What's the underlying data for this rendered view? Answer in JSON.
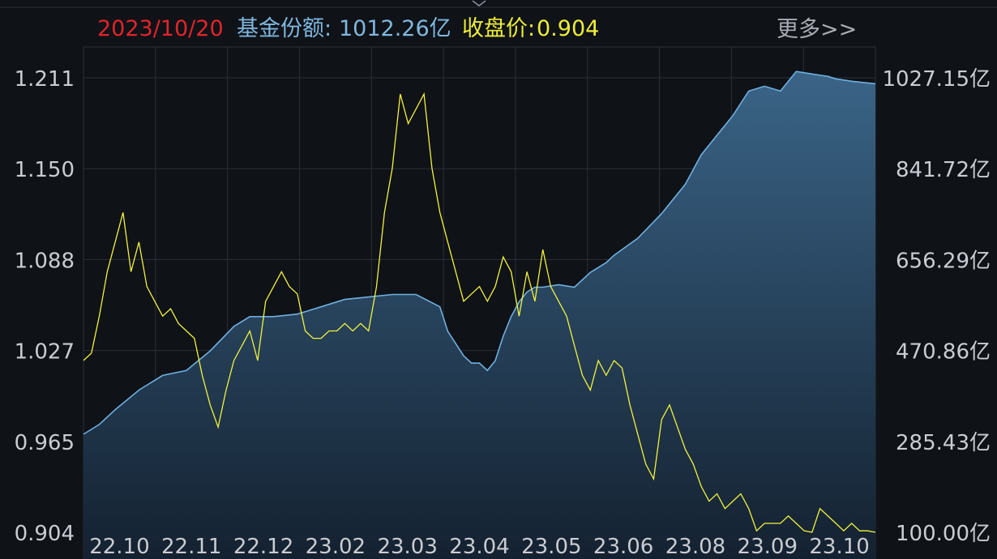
{
  "header": {
    "date": "2023/10/20",
    "shares_label": "基金份额:",
    "shares_value": "1012.26亿",
    "close_label": "收盘价:",
    "close_value": "0.904",
    "more_link": "更多>>"
  },
  "colors": {
    "background": "#0f1217",
    "grid": "#2b3038",
    "date": "#e0252a",
    "shares": "#7fb8df",
    "close": "#eded3a",
    "area_top": "#3a6487",
    "area_bottom": "#142130",
    "shares_line": "#6fb0e0",
    "price_line": "#f2f23c",
    "axis_text": "#c9ccd2"
  },
  "chart_data": {
    "type": "line",
    "title": "",
    "left_axis": {
      "ticks": [
        "1.211",
        "1.150",
        "1.088",
        "1.027",
        "0.965",
        "0.904"
      ],
      "ylim": [
        0.904,
        1.211
      ]
    },
    "right_axis": {
      "ticks": [
        "1027.15亿",
        "841.72亿",
        "656.29亿",
        "470.86亿",
        "285.43亿",
        "100.00亿"
      ],
      "ylim": [
        100.0,
        1027.15
      ]
    },
    "x_ticks": [
      "22.10",
      "22.11",
      "22.12",
      "23.02",
      "23.03",
      "23.04",
      "23.05",
      "23.06",
      "23.08",
      "23.09",
      "23.10"
    ],
    "series": [
      {
        "name": "基金份额",
        "axis": "right",
        "style": "area",
        "t": [
          0.0,
          0.02,
          0.04,
          0.07,
          0.1,
          0.13,
          0.16,
          0.19,
          0.21,
          0.24,
          0.27,
          0.3,
          0.33,
          0.36,
          0.39,
          0.42,
          0.45,
          0.46,
          0.48,
          0.49,
          0.5,
          0.51,
          0.52,
          0.53,
          0.54,
          0.55,
          0.56,
          0.57,
          0.58,
          0.6,
          0.62,
          0.64,
          0.66,
          0.67,
          0.7,
          0.73,
          0.76,
          0.78,
          0.8,
          0.82,
          0.84,
          0.86,
          0.88,
          0.9,
          0.92,
          0.94,
          0.95,
          0.97,
          1.0
        ],
        "values": [
          300,
          320,
          350,
          390,
          420,
          430,
          470,
          520,
          540,
          540,
          545,
          560,
          575,
          580,
          585,
          585,
          560,
          510,
          460,
          445,
          445,
          430,
          450,
          500,
          540,
          570,
          590,
          600,
          600,
          605,
          600,
          630,
          650,
          665,
          700,
          750,
          810,
          870,
          910,
          950,
          1000,
          1010,
          1000,
          1040,
          1035,
          1030,
          1025,
          1020,
          1015
        ]
      },
      {
        "name": "收盘价",
        "axis": "left",
        "style": "line",
        "t": [
          0.0,
          0.01,
          0.02,
          0.03,
          0.04,
          0.05,
          0.06,
          0.07,
          0.08,
          0.09,
          0.1,
          0.11,
          0.12,
          0.13,
          0.14,
          0.15,
          0.16,
          0.17,
          0.18,
          0.19,
          0.2,
          0.21,
          0.22,
          0.23,
          0.24,
          0.25,
          0.26,
          0.27,
          0.28,
          0.29,
          0.3,
          0.31,
          0.32,
          0.33,
          0.34,
          0.35,
          0.36,
          0.37,
          0.38,
          0.39,
          0.4,
          0.41,
          0.42,
          0.43,
          0.44,
          0.45,
          0.46,
          0.47,
          0.48,
          0.49,
          0.5,
          0.51,
          0.52,
          0.53,
          0.54,
          0.55,
          0.56,
          0.57,
          0.58,
          0.59,
          0.6,
          0.61,
          0.62,
          0.63,
          0.64,
          0.65,
          0.66,
          0.67,
          0.68,
          0.69,
          0.7,
          0.71,
          0.72,
          0.73,
          0.74,
          0.75,
          0.76,
          0.77,
          0.78,
          0.79,
          0.8,
          0.81,
          0.82,
          0.83,
          0.84,
          0.85,
          0.86,
          0.87,
          0.88,
          0.89,
          0.9,
          0.91,
          0.92,
          0.93,
          0.94,
          0.95,
          0.96,
          0.97,
          0.98,
          0.99,
          1.0
        ],
        "values": [
          1.02,
          1.025,
          1.05,
          1.08,
          1.1,
          1.12,
          1.08,
          1.1,
          1.07,
          1.06,
          1.05,
          1.055,
          1.045,
          1.04,
          1.035,
          1.01,
          0.99,
          0.975,
          1.0,
          1.02,
          1.03,
          1.04,
          1.02,
          1.06,
          1.07,
          1.08,
          1.07,
          1.065,
          1.04,
          1.035,
          1.035,
          1.04,
          1.04,
          1.045,
          1.04,
          1.045,
          1.04,
          1.07,
          1.12,
          1.15,
          1.2,
          1.18,
          1.19,
          1.2,
          1.15,
          1.12,
          1.1,
          1.08,
          1.06,
          1.065,
          1.07,
          1.06,
          1.07,
          1.09,
          1.08,
          1.05,
          1.08,
          1.06,
          1.095,
          1.07,
          1.06,
          1.05,
          1.03,
          1.01,
          1.0,
          1.02,
          1.01,
          1.02,
          1.015,
          0.99,
          0.97,
          0.95,
          0.94,
          0.98,
          0.99,
          0.975,
          0.96,
          0.95,
          0.935,
          0.925,
          0.93,
          0.92,
          0.925,
          0.93,
          0.92,
          0.905,
          0.91,
          0.91,
          0.91,
          0.915,
          0.91,
          0.905,
          0.904,
          0.92,
          0.915,
          0.91,
          0.905,
          0.91,
          0.905,
          0.905,
          0.904
        ]
      }
    ],
    "grid": true
  }
}
